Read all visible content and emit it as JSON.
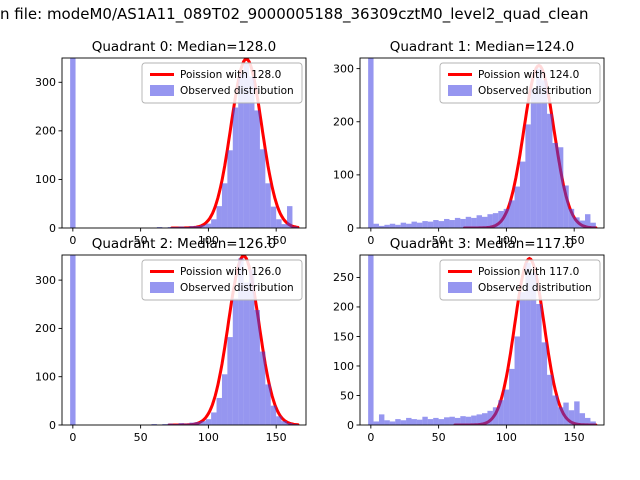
{
  "figure": {
    "title": "n file: modeM0/AS1A11_089T02_9000005188_36309cztM0_level2_quad_clean"
  },
  "colors": {
    "bar": "#3f3fe3",
    "bar_opacity": 0.55,
    "curve": "#ff0000",
    "axes": "#000000",
    "legend_border": "#b3b3b3",
    "background": "#ffffff"
  },
  "chart_data": [
    {
      "type": "bar",
      "title": "Quadrant 0: Median=128.0",
      "median": 128.0,
      "legend": [
        "Poission with 128.0",
        "Observed distribution"
      ],
      "xlabel": "",
      "ylabel": "",
      "xlim": [
        -8,
        172
      ],
      "ylim": [
        0,
        350
      ],
      "xticks": [
        0,
        50,
        100,
        150
      ],
      "yticks": [
        0,
        100,
        200,
        300
      ],
      "bin_start": 0,
      "bin_step": 4,
      "values": [
        400,
        0,
        0,
        0,
        0,
        0,
        0,
        0,
        0,
        0,
        0,
        0,
        0,
        0,
        0,
        0,
        2,
        1,
        2,
        2,
        3,
        2,
        4,
        4,
        6,
        9,
        18,
        45,
        92,
        160,
        248,
        318,
        340,
        312,
        242,
        162,
        92,
        44,
        18,
        8,
        45,
        3
      ],
      "curve": {
        "model": "poisson",
        "mu": 128.0,
        "sigma": 11.3,
        "amp": 348
      }
    },
    {
      "type": "bar",
      "title": "Quadrant 1: Median=124.0",
      "median": 124.0,
      "legend": [
        "Poission with 124.0",
        "Observed distribution"
      ],
      "xlabel": "",
      "ylabel": "",
      "xlim": [
        -8,
        172
      ],
      "ylim": [
        0,
        320
      ],
      "xticks": [
        0,
        50,
        100,
        150
      ],
      "yticks": [
        0,
        100,
        200,
        300
      ],
      "bin_start": 0,
      "bin_step": 4,
      "values": [
        350,
        8,
        4,
        6,
        8,
        6,
        10,
        8,
        12,
        10,
        13,
        12,
        15,
        13,
        17,
        15,
        19,
        17,
        21,
        19,
        24,
        21,
        26,
        28,
        32,
        36,
        52,
        78,
        125,
        195,
        262,
        300,
        278,
        215,
        160,
        152,
        80,
        36,
        20,
        14,
        26,
        10
      ],
      "curve": {
        "model": "poisson",
        "mu": 124.0,
        "sigma": 11.1,
        "amp": 306
      }
    },
    {
      "type": "bar",
      "title": "Quadrant 2: Median=126.0",
      "median": 126.0,
      "legend": [
        "Poission with 126.0",
        "Observed distribution"
      ],
      "xlabel": "",
      "ylabel": "",
      "xlim": [
        -8,
        172
      ],
      "ylim": [
        0,
        352
      ],
      "xticks": [
        0,
        50,
        100,
        150
      ],
      "yticks": [
        0,
        100,
        200,
        300
      ],
      "bin_start": 0,
      "bin_step": 4,
      "values": [
        400,
        0,
        0,
        0,
        0,
        0,
        0,
        0,
        0,
        0,
        0,
        0,
        0,
        0,
        0,
        2,
        1,
        2,
        3,
        2,
        4,
        3,
        5,
        6,
        8,
        12,
        26,
        56,
        105,
        182,
        262,
        345,
        295,
        322,
        238,
        152,
        84,
        40,
        18,
        8,
        4,
        2
      ],
      "curve": {
        "model": "poisson",
        "mu": 126.0,
        "sigma": 11.2,
        "amp": 350
      }
    },
    {
      "type": "bar",
      "title": "Quadrant 3: Median=117.0",
      "median": 117.0,
      "legend": [
        "Poission with 117.0",
        "Observed distribution"
      ],
      "xlabel": "",
      "ylabel": "",
      "xlim": [
        -8,
        172
      ],
      "ylim": [
        0,
        288
      ],
      "xticks": [
        0,
        50,
        100,
        150
      ],
      "yticks": [
        0,
        50,
        100,
        150,
        200,
        250
      ],
      "bin_start": 0,
      "bin_step": 4,
      "values": [
        320,
        6,
        18,
        8,
        6,
        10,
        8,
        12,
        10,
        9,
        14,
        10,
        12,
        10,
        13,
        14,
        12,
        15,
        14,
        16,
        18,
        20,
        24,
        30,
        42,
        60,
        95,
        150,
        225,
        275,
        258,
        205,
        140,
        85,
        50,
        30,
        38,
        25,
        40,
        20,
        12,
        6
      ],
      "curve": {
        "model": "poisson",
        "mu": 117.0,
        "sigma": 10.8,
        "amp": 282
      }
    }
  ]
}
